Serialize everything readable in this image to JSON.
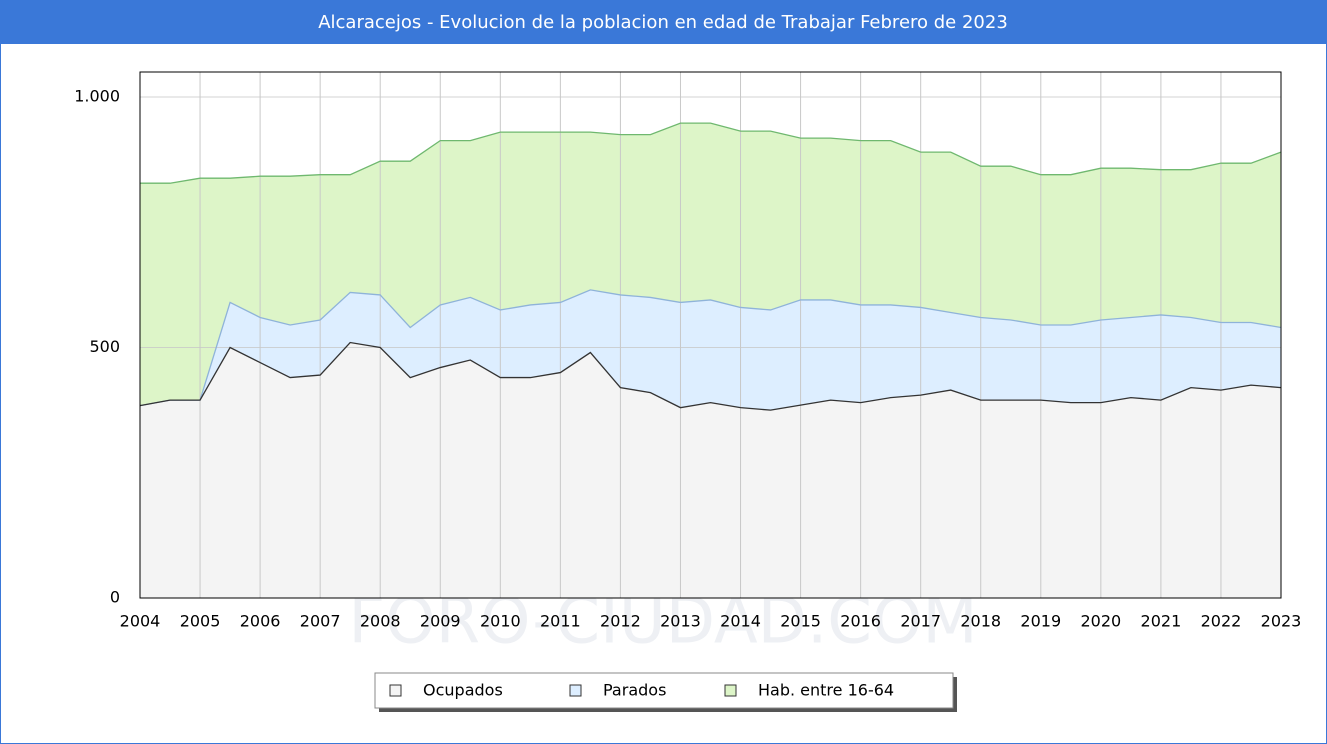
{
  "chart_data": {
    "type": "area",
    "title": "Alcaracejos - Evolucion de la poblacion en edad de Trabajar Febrero de 2023",
    "watermark": "FORO-CIUDAD.COM",
    "x": [
      2004,
      2004.5,
      2005,
      2005.5,
      2006,
      2006.5,
      2007,
      2007.5,
      2008,
      2008.5,
      2009,
      2009.5,
      2010,
      2010.5,
      2011,
      2011.5,
      2012,
      2012.5,
      2013,
      2013.5,
      2014,
      2014.5,
      2015,
      2015.5,
      2016,
      2016.5,
      2017,
      2017.5,
      2018,
      2018.5,
      2019,
      2019.5,
      2020,
      2020.5,
      2021,
      2021.5,
      2022,
      2022.5,
      2023
    ],
    "series": [
      {
        "name": "Ocupados",
        "color": "#f4f4f4",
        "line_color": "#333333",
        "values": [
          384,
          395,
          395,
          500,
          470,
          440,
          445,
          510,
          500,
          440,
          460,
          475,
          440,
          440,
          450,
          490,
          420,
          410,
          380,
          390,
          380,
          375,
          385,
          395,
          390,
          400,
          405,
          415,
          395,
          395,
          395,
          390,
          390,
          400,
          395,
          420,
          415,
          425,
          420
        ]
      },
      {
        "name": "Parados",
        "color": "#ddeeff",
        "line_color": "#8fb3d9",
        "stacked_on": "Ocupados",
        "values": [
          0,
          0,
          0,
          90,
          90,
          105,
          110,
          100,
          105,
          100,
          125,
          125,
          135,
          145,
          140,
          125,
          185,
          190,
          210,
          205,
          200,
          200,
          210,
          200,
          195,
          185,
          175,
          155,
          165,
          160,
          150,
          155,
          165,
          160,
          170,
          140,
          135,
          125,
          120
        ]
      },
      {
        "name": "Hab. entre 16-64",
        "color": "#ddf5c8",
        "line_color": "#6fb86f",
        "values": [
          828,
          828,
          838,
          838,
          842,
          842,
          845,
          845,
          872,
          872,
          913,
          913,
          930,
          930,
          930,
          930,
          925,
          925,
          948,
          948,
          932,
          932,
          918,
          918,
          913,
          913,
          890,
          890,
          862,
          862,
          845,
          845,
          858,
          858,
          855,
          855,
          868,
          868,
          890
        ]
      }
    ],
    "xlim": [
      2004,
      2023
    ],
    "xticks": [
      2004,
      2005,
      2006,
      2007,
      2008,
      2009,
      2010,
      2011,
      2012,
      2013,
      2014,
      2015,
      2016,
      2017,
      2018,
      2019,
      2020,
      2021,
      2022,
      2023
    ],
    "ylim": [
      0,
      1050
    ],
    "yticks": [
      0,
      500,
      {
        "value": 1000,
        "label": "1.000"
      }
    ],
    "grid": true,
    "legend": "bottom"
  }
}
